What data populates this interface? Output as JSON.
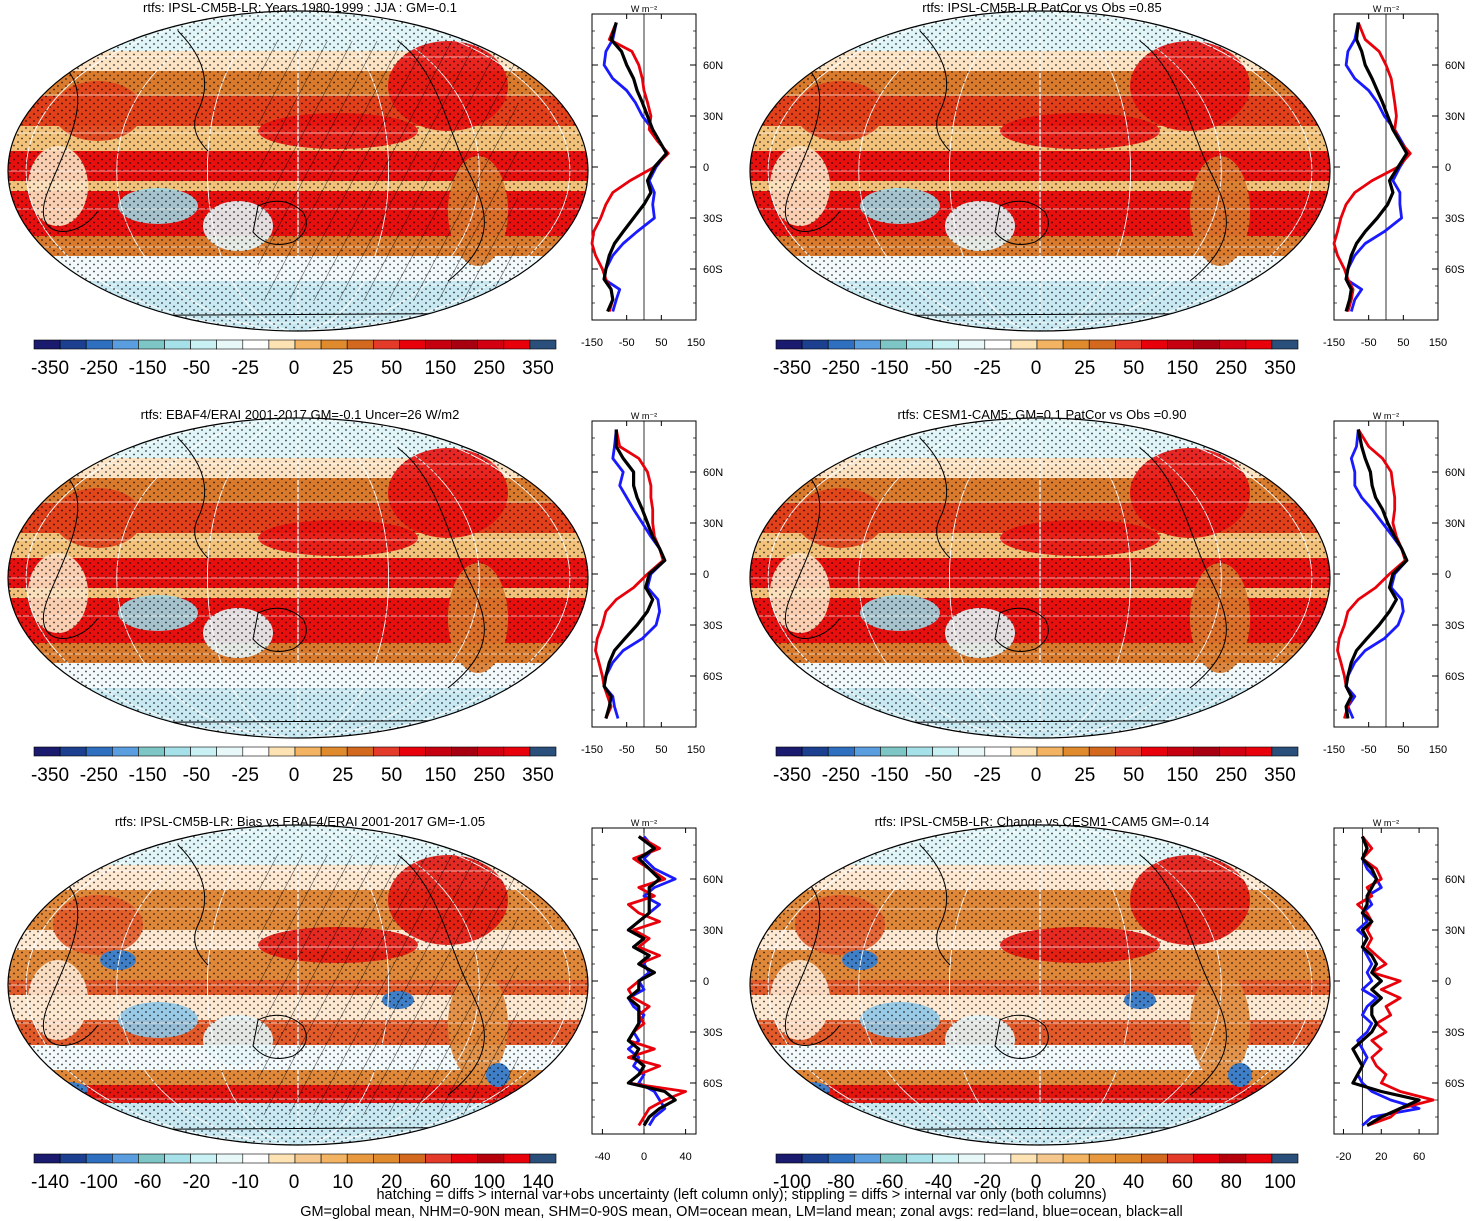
{
  "figure": {
    "footer_lines": [
      "hatching = diffs > internal var+obs uncertainty (left column only); stippling = diffs > internal var only (both columns)",
      "GM=global mean, NHM=0-90N mean, SHM=0-90S mean, OM=ocean mean, LM=land mean; zonal avgs: red=land, blue=ocean, black=all"
    ],
    "zonal_unit": "W m⁻²",
    "lat_ticks": [
      "60N",
      "30N",
      "0",
      "30S",
      "60S"
    ],
    "zonal_legend": {
      "land": "#e8000b",
      "ocean": "#1a1aff",
      "all": "#000000"
    },
    "colorbar_colors": {
      "full": [
        "#1a1a6e",
        "#1c3f8f",
        "#2e6fc0",
        "#5b9ee0",
        "#7ec6c6",
        "#a6e0e8",
        "#c9f0f2",
        "#e8f8f8",
        "#ffffff",
        "#fde3b4",
        "#f2b463",
        "#e08a2e",
        "#d2691e",
        "#e33a2a",
        "#e8000b",
        "#c70010",
        "#a80010",
        "#d30012",
        "#e8000b",
        "#2a4f7a"
      ],
      "light": [
        "#a6e0e8",
        "#c9f0f2",
        "#e8f8f8",
        "#ffffff",
        "#fde3b4",
        "#f2b463",
        "#e08a2e",
        "#d2691e",
        "#e33a2a",
        "#e8000b"
      ]
    }
  },
  "chart_data": [
    {
      "type": "map",
      "title": "rtfs: IPSL-CM5B-LR: Years 1980-1999 : JJA : GM=-0.1",
      "colorbar_labels": [
        "-350",
        "-250",
        "-150",
        "-50",
        "-25",
        "0",
        "25",
        "50",
        "150",
        "250",
        "350"
      ],
      "colorbar_range": [
        -350,
        350
      ],
      "zonal": {
        "xlim": [
          -150,
          150
        ],
        "xticks": [
          "-150",
          "-50",
          "50",
          "150"
        ],
        "ylim": [
          -90,
          90
        ],
        "hatching": true,
        "lat": [
          85,
          75,
          68,
          60,
          52,
          45,
          38,
          30,
          22,
          15,
          8,
          0,
          -8,
          -15,
          -22,
          -30,
          -38,
          -45,
          -52,
          -60,
          -66,
          -72,
          -78,
          -85
        ],
        "land": [
          -80,
          -100,
          -35,
          -15,
          -5,
          0,
          10,
          20,
          15,
          40,
          70,
          30,
          -40,
          -90,
          -110,
          -125,
          -145,
          -150,
          -140,
          -120,
          -110,
          -95,
          -90,
          -100
        ],
        "ocean": [
          -80,
          -90,
          -110,
          -115,
          -90,
          -50,
          -25,
          -5,
          25,
          45,
          65,
          35,
          15,
          30,
          25,
          30,
          -20,
          -60,
          -90,
          -110,
          -115,
          -70,
          -80,
          -90
        ],
        "all": [
          -80,
          -95,
          -65,
          -50,
          -30,
          -20,
          -5,
          10,
          25,
          45,
          65,
          30,
          10,
          20,
          0,
          -30,
          -60,
          -85,
          -100,
          -110,
          -115,
          -95,
          -90,
          -105
        ]
      }
    },
    {
      "type": "map",
      "title": "rtfs: IPSL-CM5B-LR PatCor vs Obs =0.85",
      "colorbar_labels": [
        "-350",
        "-250",
        "-150",
        "-50",
        "-25",
        "0",
        "25",
        "50",
        "150",
        "250",
        "350"
      ],
      "colorbar_range": [
        -350,
        350
      ],
      "zonal": {
        "xlim": [
          -150,
          150
        ],
        "xticks": [
          "-150",
          "-50",
          "50",
          "150"
        ],
        "ylim": [
          -90,
          90
        ],
        "hatching": false,
        "lat": [
          85,
          75,
          68,
          60,
          52,
          45,
          38,
          30,
          22,
          15,
          8,
          0,
          -8,
          -15,
          -22,
          -30,
          -38,
          -45,
          -52,
          -60,
          -66,
          -72,
          -78,
          -85
        ],
        "land": [
          -80,
          -60,
          -20,
          0,
          15,
          20,
          25,
          30,
          25,
          40,
          70,
          35,
          -40,
          -90,
          -115,
          -130,
          -140,
          -150,
          -140,
          -120,
          -110,
          -95,
          -100,
          -110
        ],
        "ocean": [
          -80,
          -90,
          -110,
          -115,
          -90,
          -50,
          -25,
          -5,
          25,
          45,
          65,
          40,
          20,
          40,
          40,
          45,
          -5,
          -60,
          -90,
          -110,
          -115,
          -70,
          -90,
          -100
        ],
        "all": [
          -80,
          -85,
          -70,
          -60,
          -40,
          -25,
          -10,
          5,
          20,
          40,
          60,
          35,
          10,
          20,
          5,
          -25,
          -60,
          -85,
          -100,
          -110,
          -115,
          -100,
          -105,
          -115
        ]
      }
    },
    {
      "type": "map",
      "title": "rtfs: EBAF4/ERAI 2001-2017 GM=-0.1 Uncer=26 W/m2",
      "colorbar_labels": [
        "-350",
        "-250",
        "-150",
        "-50",
        "-25",
        "0",
        "25",
        "50",
        "150",
        "250",
        "350"
      ],
      "colorbar_range": [
        -350,
        350
      ],
      "zonal": {
        "xlim": [
          -150,
          150
        ],
        "xticks": [
          "-150",
          "-50",
          "50",
          "150"
        ],
        "ylim": [
          -90,
          90
        ],
        "hatching": false,
        "lat": [
          85,
          75,
          68,
          60,
          52,
          45,
          38,
          30,
          22,
          15,
          8,
          0,
          -8,
          -15,
          -22,
          -30,
          -38,
          -45,
          -52,
          -60,
          -66,
          -72,
          -78,
          -85
        ],
        "land": [
          -80,
          -70,
          -15,
          10,
          20,
          20,
          25,
          25,
          30,
          45,
          55,
          10,
          -30,
          -80,
          -110,
          -120,
          -135,
          -140,
          -130,
          -120,
          -115,
          -105,
          -95,
          -110
        ],
        "ocean": [
          -80,
          -85,
          -90,
          -60,
          -70,
          -50,
          -30,
          -5,
          20,
          45,
          60,
          20,
          10,
          40,
          45,
          35,
          -5,
          -60,
          -90,
          -110,
          -115,
          -90,
          -85,
          -75
        ],
        "all": [
          -80,
          -80,
          -60,
          -30,
          -30,
          -20,
          -5,
          10,
          25,
          45,
          60,
          15,
          5,
          25,
          10,
          -20,
          -55,
          -85,
          -100,
          -110,
          -115,
          -95,
          -100,
          -110
        ]
      }
    },
    {
      "type": "map",
      "title": "rtfs: CESM1-CAM5: GM=0.1 PatCor vs Obs =0.90",
      "colorbar_labels": [
        "-350",
        "-250",
        "-150",
        "-50",
        "-25",
        "0",
        "25",
        "50",
        "150",
        "250",
        "350"
      ],
      "colorbar_range": [
        -350,
        350
      ],
      "zonal": {
        "xlim": [
          -150,
          150
        ],
        "xticks": [
          "-150",
          "-50",
          "50",
          "150"
        ],
        "ylim": [
          -90,
          90
        ],
        "hatching": false,
        "lat": [
          85,
          75,
          68,
          60,
          52,
          45,
          38,
          30,
          22,
          15,
          8,
          0,
          -8,
          -15,
          -22,
          -30,
          -38,
          -45,
          -52,
          -60,
          -66,
          -72,
          -78,
          -85
        ],
        "land": [
          -80,
          -50,
          -10,
          15,
          20,
          25,
          25,
          20,
          30,
          45,
          55,
          10,
          -30,
          -80,
          -110,
          -120,
          -135,
          -140,
          -130,
          -120,
          -115,
          -100,
          -110,
          -120
        ],
        "ocean": [
          -80,
          -85,
          -100,
          -90,
          -90,
          -70,
          -40,
          -10,
          20,
          45,
          60,
          25,
          15,
          45,
          50,
          35,
          -5,
          -60,
          -90,
          -110,
          -115,
          -90,
          -110,
          -95
        ],
        "all": [
          -80,
          -70,
          -60,
          -45,
          -40,
          -30,
          -10,
          5,
          25,
          45,
          60,
          20,
          10,
          30,
          10,
          -20,
          -55,
          -85,
          -100,
          -110,
          -115,
          -100,
          -115,
          -110
        ]
      }
    },
    {
      "type": "map",
      "title": "rtfs: IPSL-CM5B-LR: Bias vs EBAF4/ERAI 2001-2017 GM=-1.05",
      "colorbar_labels": [
        "-140",
        "-100",
        "-60",
        "-20",
        "-10",
        "0",
        "10",
        "20",
        "60",
        "100",
        "140"
      ],
      "colorbar_range": [
        -140,
        140
      ],
      "zonal": {
        "xlim": [
          -50,
          50
        ],
        "xticks": [
          "-40",
          "0",
          "40"
        ],
        "ylim": [
          -90,
          90
        ],
        "hatching": true,
        "lat": [
          85,
          78,
          72,
          66,
          60,
          55,
          50,
          45,
          40,
          35,
          30,
          25,
          20,
          15,
          10,
          5,
          0,
          -5,
          -10,
          -15,
          -20,
          -25,
          -30,
          -35,
          -40,
          -45,
          -50,
          -55,
          -60,
          -65,
          -70,
          -75,
          -80,
          -85
        ],
        "land": [
          -5,
          15,
          -10,
          5,
          20,
          -5,
          10,
          -15,
          -5,
          15,
          -10,
          5,
          -5,
          15,
          -5,
          10,
          -5,
          -15,
          -10,
          5,
          -5,
          0,
          -10,
          -15,
          10,
          -15,
          15,
          -5,
          -15,
          40,
          20,
          5,
          0,
          -5
        ],
        "ocean": [
          0,
          10,
          0,
          10,
          30,
          10,
          0,
          15,
          5,
          -5,
          -15,
          0,
          -10,
          5,
          0,
          5,
          -5,
          0,
          -15,
          -10,
          0,
          -5,
          -10,
          -5,
          -15,
          -5,
          -10,
          0,
          -5,
          10,
          15,
          20,
          10,
          5
        ],
        "all": [
          -5,
          10,
          -5,
          5,
          15,
          5,
          5,
          5,
          5,
          -5,
          -15,
          0,
          -10,
          5,
          -5,
          10,
          -5,
          -5,
          -15,
          -5,
          -5,
          -5,
          -10,
          -15,
          -5,
          -10,
          0,
          -5,
          -15,
          20,
          30,
          15,
          5,
          0
        ]
      }
    },
    {
      "type": "map",
      "title": "rtfs: IPSL-CM5B-LR: Change vs CESM1-CAM5 GM=-0.14",
      "colorbar_labels": [
        "-100",
        "-80",
        "-60",
        "-40",
        "-20",
        "0",
        "20",
        "40",
        "60",
        "80",
        "100"
      ],
      "colorbar_range": [
        -100,
        100
      ],
      "zonal": {
        "xlim": [
          -30,
          80
        ],
        "xticks": [
          "-20",
          "20",
          "60"
        ],
        "ylim": [
          -90,
          90
        ],
        "hatching": false,
        "lat": [
          85,
          78,
          72,
          66,
          60,
          55,
          50,
          45,
          40,
          35,
          30,
          25,
          20,
          15,
          10,
          5,
          0,
          -5,
          -10,
          -15,
          -20,
          -25,
          -30,
          -35,
          -40,
          -45,
          -50,
          -55,
          -60,
          -65,
          -70,
          -75,
          -80,
          -85
        ],
        "land": [
          0,
          10,
          0,
          15,
          20,
          5,
          10,
          -5,
          5,
          10,
          5,
          10,
          5,
          15,
          25,
          10,
          40,
          20,
          40,
          25,
          30,
          15,
          25,
          10,
          20,
          10,
          15,
          25,
          20,
          40,
          75,
          40,
          30,
          5
        ],
        "ocean": [
          0,
          5,
          0,
          5,
          15,
          20,
          5,
          10,
          0,
          5,
          -5,
          5,
          0,
          5,
          10,
          5,
          10,
          0,
          15,
          5,
          0,
          10,
          5,
          -5,
          0,
          5,
          0,
          -5,
          0,
          10,
          30,
          60,
          10,
          0
        ],
        "all": [
          0,
          5,
          0,
          10,
          15,
          10,
          5,
          5,
          0,
          10,
          0,
          5,
          0,
          10,
          15,
          10,
          20,
          10,
          20,
          10,
          10,
          15,
          10,
          0,
          -10,
          -5,
          0,
          -5,
          -10,
          20,
          60,
          40,
          20,
          5
        ]
      }
    }
  ]
}
